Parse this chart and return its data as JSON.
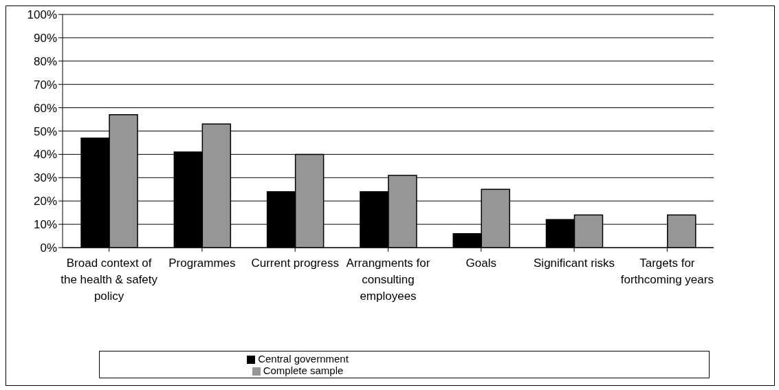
{
  "chart_data": {
    "type": "bar",
    "categories": [
      "Broad context of the health & safety policy",
      "Programmes",
      "Current progress",
      "Arrangments for consulting employees",
      "Goals",
      "Significant risks",
      "Targets for forthcoming years"
    ],
    "series": [
      {
        "name": "Central government",
        "color": "#000000",
        "values": [
          47,
          41,
          24,
          24,
          6,
          12,
          0
        ]
      },
      {
        "name": "Complete sample",
        "color": "#969696",
        "values": [
          57,
          53,
          40,
          31,
          25,
          14,
          14
        ]
      }
    ],
    "ylim": [
      0,
      100
    ],
    "yticks": [
      {
        "value": 0,
        "label": "0%"
      },
      {
        "value": 10,
        "label": "10%"
      },
      {
        "value": 20,
        "label": "20%"
      },
      {
        "value": 30,
        "label": "30%"
      },
      {
        "value": 40,
        "label": "40%"
      },
      {
        "value": 50,
        "label": "50%"
      },
      {
        "value": 60,
        "label": "60%"
      },
      {
        "value": 70,
        "label": "70%"
      },
      {
        "value": 80,
        "label": "80%"
      },
      {
        "value": 90,
        "label": "90%"
      },
      {
        "value": 100,
        "label": "100%"
      }
    ],
    "grid": "y",
    "legend": "bottom"
  }
}
